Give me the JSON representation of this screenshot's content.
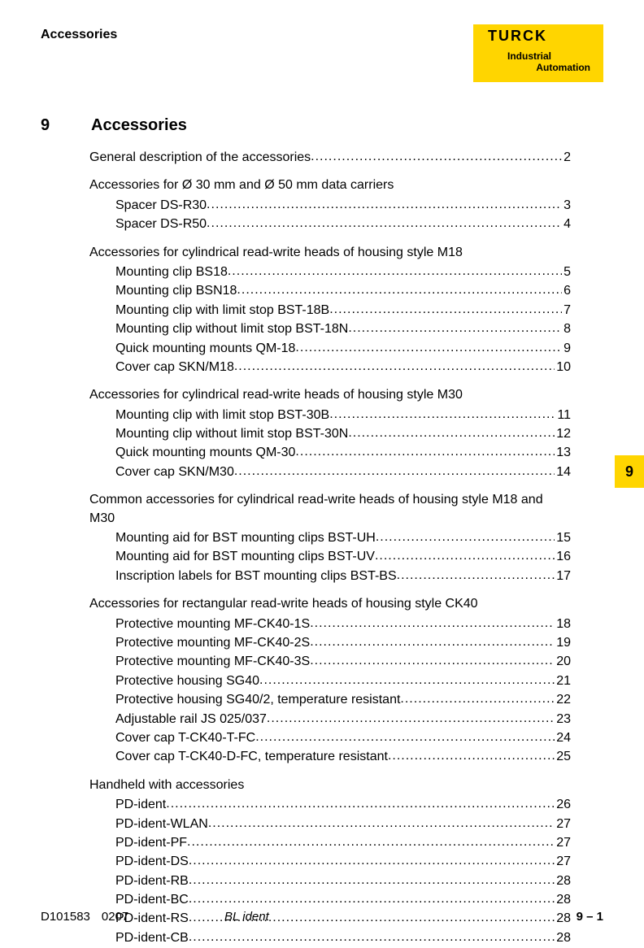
{
  "header": {
    "running_title": "Accessories",
    "logo_text": "TURCK",
    "logo_sub_line1": "Industrial",
    "logo_sub_line2": "Automation",
    "logo_bg": "#ffd500"
  },
  "chapter": {
    "number": "9",
    "title": "Accessories"
  },
  "toc": [
    {
      "heading": null,
      "items": [
        {
          "label": "General description of the accessories",
          "page": "2",
          "single": true
        }
      ]
    },
    {
      "heading": "Accessories for Ø 30 mm and Ø 50 mm data carriers",
      "items": [
        {
          "label": "Spacer DS-R30",
          "page": "3"
        },
        {
          "label": "Spacer DS-R50",
          "page": "4"
        }
      ]
    },
    {
      "heading": "Accessories for cylindrical read-write heads of housing style M18",
      "items": [
        {
          "label": "Mounting clip BS18",
          "page": "5"
        },
        {
          "label": "Mounting clip BSN18",
          "page": "6"
        },
        {
          "label": "Mounting clip with limit stop BST-18B",
          "page": "7"
        },
        {
          "label": "Mounting clip without limit stop BST-18N",
          "page": "8"
        },
        {
          "label": "Quick mounting mounts QM-18",
          "page": "9"
        },
        {
          "label": "Cover cap SKN/M18",
          "page": "10"
        }
      ]
    },
    {
      "heading": "Accessories for cylindrical read-write heads of housing style M30",
      "items": [
        {
          "label": "Mounting clip with limit stop BST-30B",
          "page": "11"
        },
        {
          "label": "Mounting clip without limit stop BST-30N",
          "page": "12"
        },
        {
          "label": "Quick mounting mounts QM-30",
          "page": "13"
        },
        {
          "label": "Cover cap SKN/M30",
          "page": "14"
        }
      ]
    },
    {
      "heading": "Common accessories for cylindrical read-write heads of housing style M18 and M30",
      "heading_wrap": true,
      "items": [
        {
          "label": "Mounting aid for BST mounting clips BST-UH",
          "page": "15"
        },
        {
          "label": "Mounting aid for BST mounting clips BST-UV",
          "page": "16"
        },
        {
          "label": "Inscription labels for BST mounting clips BST-BS",
          "page": "17"
        }
      ]
    },
    {
      "heading": "Accessories for rectangular read-write heads of housing style CK40",
      "items": [
        {
          "label": "Protective mounting MF-CK40-1S",
          "page": "18"
        },
        {
          "label": "Protective mounting MF-CK40-2S",
          "page": "19"
        },
        {
          "label": "Protective mounting MF-CK40-3S",
          "page": "20"
        },
        {
          "label": "Protective housing SG40",
          "page": "21"
        },
        {
          "label": "Protective housing SG40/2, temperature resistant",
          "page": "22"
        },
        {
          "label": "Adjustable rail JS 025/037",
          "page": "23"
        },
        {
          "label": "Cover cap T-CK40-T-FC",
          "page": "24"
        },
        {
          "label": "Cover cap T-CK40-D-FC, temperature resistant",
          "page": "25"
        }
      ]
    },
    {
      "heading": "Handheld with accessories",
      "items": [
        {
          "label": "PD-ident",
          "page": "26"
        },
        {
          "label": "PD-ident-WLAN",
          "page": "27"
        },
        {
          "label": "PD-ident-PF",
          "page": "27"
        },
        {
          "label": "PD-ident-DS",
          "page": "27"
        },
        {
          "label": "PD-ident-RB",
          "page": "28"
        },
        {
          "label": "PD-ident-BC",
          "page": "28"
        },
        {
          "label": "PD-ident-RS",
          "page": "28"
        },
        {
          "label": "PD-ident-CB",
          "page": "28"
        }
      ]
    }
  ],
  "side_tab": "9",
  "footer": {
    "doc_id": "D101583",
    "revision": "0207",
    "product": "BL ident",
    "page": "9 – 1"
  }
}
